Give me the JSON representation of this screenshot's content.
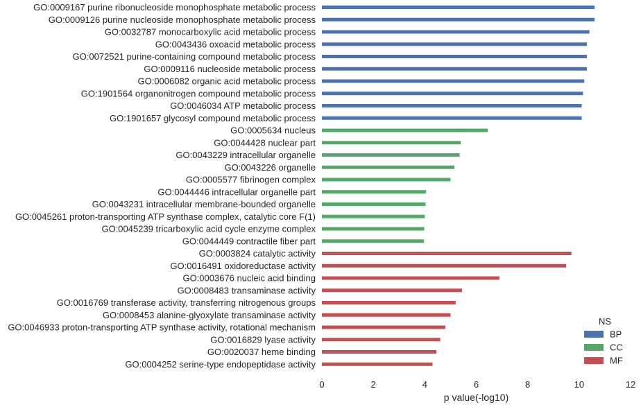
{
  "chart_data": {
    "type": "bar",
    "orientation": "horizontal",
    "xlabel": "p value(-log10)",
    "xlim": [
      0,
      12
    ],
    "xticks": [
      0,
      2,
      4,
      6,
      8,
      10,
      12
    ],
    "grid": false,
    "legend": {
      "title": "NS",
      "placement": "bottom-right"
    },
    "colors": {
      "BP": "#4c72b0",
      "CC": "#55a868",
      "MF": "#c44e52"
    },
    "series": [
      {
        "name": "BP",
        "labels": [
          "GO:0009167 purine ribonucleoside monophosphate metabolic process",
          "GO:0009126 purine nucleoside monophosphate metabolic process",
          "GO:0032787 monocarboxylic acid metabolic process",
          "GO:0043436 oxoacid metabolic process",
          "GO:0072521 purine-containing compound metabolic process",
          "GO:0009116 nucleoside metabolic process",
          "GO:0006082 organic acid metabolic process",
          "GO:1901564 organonitrogen compound metabolic process",
          "GO:0046034 ATP metabolic process",
          "GO:1901657 glycosyl compound metabolic process"
        ],
        "values": [
          10.6,
          10.6,
          10.4,
          10.3,
          10.3,
          10.3,
          10.2,
          10.15,
          10.1,
          10.1
        ]
      },
      {
        "name": "CC",
        "labels": [
          "GO:0005634 nucleus",
          "GO:0044428 nuclear part",
          "GO:0043229 intracellular organelle",
          "GO:0043226 organelle",
          "GO:0005577 fibrinogen complex",
          "GO:0044446 intracellular organelle part",
          "GO:0043231 intracellular membrane-bounded organelle",
          "GO:0045261 proton-transporting ATP synthase complex, catalytic core F(1)",
          "GO:0045239 tricarboxylic acid cycle enzyme complex",
          "GO:0044449 contractile fiber part"
        ],
        "values": [
          6.45,
          5.4,
          5.35,
          5.15,
          5.0,
          4.05,
          4.03,
          4.0,
          3.98,
          3.97
        ]
      },
      {
        "name": "MF",
        "labels": [
          "GO:0003824 catalytic activity",
          "GO:0016491 oxidoreductase activity",
          "GO:0003676 nucleic acid binding",
          "GO:0008483 transaminase activity",
          "GO:0016769 transferase activity, transferring nitrogenous groups",
          "GO:0008453 alanine-glyoxylate transaminase activity",
          "GO:0046933 proton-transporting ATP synthase activity, rotational mechanism",
          "GO:0016829 lyase activity",
          "GO:0020037 heme binding",
          "GO:0004252 serine-type endopeptidase activity"
        ],
        "values": [
          9.7,
          9.5,
          6.9,
          5.45,
          5.2,
          5.0,
          4.8,
          4.6,
          4.45,
          4.3
        ]
      }
    ]
  }
}
